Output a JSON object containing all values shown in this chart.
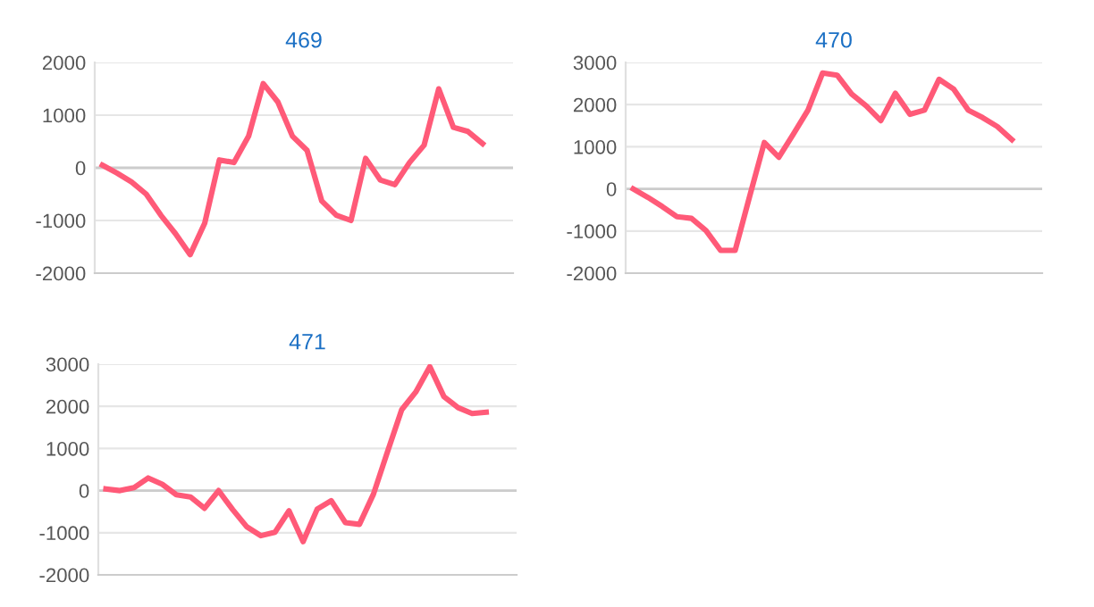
{
  "chart_data": [
    {
      "type": "line",
      "title": "469",
      "categories": [
        null,
        null,
        null,
        null,
        null,
        null,
        null,
        null,
        null,
        null,
        null,
        null,
        null,
        null,
        null,
        null,
        null,
        null,
        null,
        null,
        null,
        null,
        null,
        null,
        null,
        null,
        null
      ],
      "series": [
        {
          "color": "#ff5a78",
          "values": [
            50,
            -100,
            -270,
            -500,
            -900,
            -1250,
            -1650,
            -1050,
            150,
            100,
            600,
            1600,
            1250,
            600,
            330,
            -630,
            -900,
            -1000,
            180,
            -230,
            -320,
            100,
            430,
            1500,
            770,
            690,
            460
          ]
        }
      ],
      "ylim": [
        -2000,
        2000
      ],
      "yticks": [
        -2000,
        -1000,
        0,
        1000,
        2000
      ],
      "grid": "y",
      "marker": "none",
      "line_style": "solid"
    },
    {
      "type": "line",
      "title": "470",
      "categories": [
        null,
        null,
        null,
        null,
        null,
        null,
        null,
        null,
        null,
        null,
        null,
        null,
        null,
        null,
        null,
        null,
        null,
        null,
        null,
        null,
        null,
        null,
        null,
        null,
        null,
        null,
        null
      ],
      "series": [
        {
          "color": "#ff5a78",
          "values": [
            0,
            -200,
            -420,
            -660,
            -700,
            -990,
            -1460,
            -1460,
            -170,
            1100,
            750,
            1300,
            1870,
            2750,
            2700,
            2250,
            1970,
            1620,
            2270,
            1770,
            1870,
            2600,
            2370,
            1870,
            1690,
            1480,
            1170
          ]
        }
      ],
      "ylim": [
        -2000,
        3000
      ],
      "yticks": [
        -2000,
        -1000,
        0,
        1000,
        2000,
        3000
      ],
      "grid": "y",
      "marker": "none",
      "line_style": "solid"
    },
    {
      "type": "line",
      "title": "471",
      "categories": [
        null,
        null,
        null,
        null,
        null,
        null,
        null,
        null,
        null,
        null,
        null,
        null,
        null,
        null,
        null,
        null,
        null,
        null,
        null,
        null,
        null,
        null,
        null,
        null,
        null,
        null,
        null,
        null
      ],
      "series": [
        {
          "color": "#ff5a78",
          "values": [
            40,
            0,
            70,
            300,
            150,
            -100,
            -150,
            -420,
            0,
            -450,
            -860,
            -1070,
            -990,
            -480,
            -1210,
            -440,
            -240,
            -760,
            -800,
            -80,
            930,
            1920,
            2340,
            2940,
            2230,
            1970,
            1830,
            1860
          ]
        }
      ],
      "ylim": [
        -2000,
        3000
      ],
      "yticks": [
        -2000,
        -1000,
        0,
        1000,
        2000,
        3000
      ],
      "grid": "y",
      "marker": "none",
      "line_style": "solid"
    }
  ]
}
